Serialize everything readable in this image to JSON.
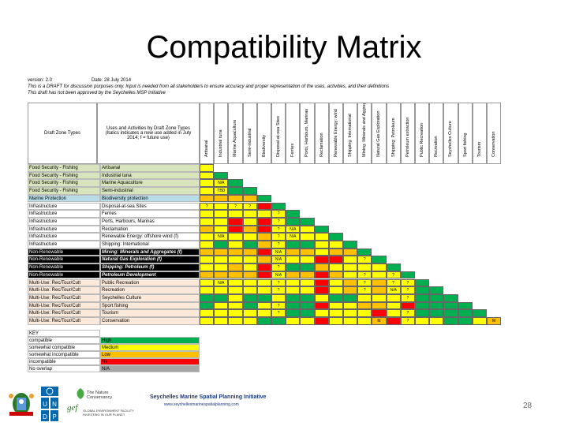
{
  "title": "Compatibility Matrix",
  "meta": {
    "version": "version: 2.0",
    "date": "Date: 28 July 2014",
    "line2": "This is a DRAFT for discussion purposes only. Input is needed from all stakeholders to ensure accuracy and proper representation of the uses, activities, and their definitions",
    "line3": "This draft has not been approved by the Seychelles MSP Initiative"
  },
  "header": {
    "left": "Draft Zone Types",
    "mid": "Uses and Activities by Draft Zone Types (Italics indicates a new use added in July 2014; f = future use)"
  },
  "columns": [
    "Artisanal",
    "Industrial tuna",
    "Marine Aquaculture",
    "Semi-industrial",
    "Biodiversity",
    "Disposal-at-sea Sites",
    "Ferries",
    "Ports, Harbours, Marinas",
    "Reclamation",
    "Renewable Energy: wind",
    "Shipping: International",
    "Mining: Minerals and Aggregates",
    "Natural Gas Exploration",
    "Shipping: Petroleum",
    "Petroleum extraction",
    "Public Recreation",
    "Recreation",
    "Seychelles Culture",
    "Sport fishing",
    "Tourism",
    "Conservation"
  ],
  "rows": [
    {
      "zone": "Food Security - Fishing",
      "use": "Artisanal"
    },
    {
      "zone": "Food Security - Fishing",
      "use": "Industrial tuna"
    },
    {
      "zone": "Food Security - Fishing",
      "use": "Marine Aquaculture"
    },
    {
      "zone": "Food Security - Fishing",
      "use": "Semi-industrial"
    },
    {
      "zone": "Marine Protection",
      "use": "Biodiversity protection"
    },
    {
      "zone": "Infrastructure",
      "use": "Disposal-at-sea Sites"
    },
    {
      "zone": "Infrastructure",
      "use": "Ferries"
    },
    {
      "zone": "Infrastructure",
      "use": "Ports, Harbours, Marinas"
    },
    {
      "zone": "Infrastructure",
      "use": "Reclamation"
    },
    {
      "zone": "Infrastructure",
      "use": "Renewable Energy: offshore wind (f)"
    },
    {
      "zone": "Infrastructure",
      "use": "Shipping: International"
    },
    {
      "zone": "Non-Renewable",
      "use": "Mining: Minerals and Aggregates (f)"
    },
    {
      "zone": "Non-Renewable",
      "use": "Natural Gas Exploration (f)"
    },
    {
      "zone": "Non-Renewable",
      "use": "Shipping: Petroleum (f)"
    },
    {
      "zone": "Non-Renewable",
      "use": "Petroleum Development"
    },
    {
      "zone": "Multi-Use: Rec/Tour/Cult",
      "use": "Public Recreation"
    },
    {
      "zone": "Multi-Use: Rec/Tour/Cult",
      "use": "Recreation"
    },
    {
      "zone": "Multi-Use: Rec/Tour/Cult",
      "use": "Seychelles Culture"
    },
    {
      "zone": "Multi-Use: Rec/Tour/Cult",
      "use": "Sport fishing"
    },
    {
      "zone": "Multi-Use: Rec/Tour/Cult",
      "use": "Tourism"
    },
    {
      "zone": "Multi-Use: Rec/Tour/Cult",
      "use": "Conservation"
    }
  ],
  "matrix": [
    [
      "Y",
      "",
      "",
      "",
      "",
      "",
      "",
      "",
      "",
      "",
      "",
      "",
      "",
      "",
      "",
      "",
      "",
      "",
      "",
      "",
      ""
    ],
    [
      "Y",
      "G",
      "",
      "",
      "",
      "",
      "",
      "",
      "",
      "",
      "",
      "",
      "",
      "",
      "",
      "",
      "",
      "",
      "",
      "",
      ""
    ],
    [
      "Y",
      "N/A",
      "G",
      "",
      "",
      "",
      "",
      "",
      "",
      "",
      "",
      "",
      "",
      "",
      "",
      "",
      "",
      "",
      "",
      "",
      ""
    ],
    [
      "Y",
      "TBD",
      "G",
      "G",
      "",
      "",
      "",
      "",
      "",
      "",
      "",
      "",
      "",
      "",
      "",
      "",
      "",
      "",
      "",
      "",
      ""
    ],
    [
      "O",
      "O",
      "O",
      "O",
      "G",
      "",
      "",
      "",
      "",
      "",
      "",
      "",
      "",
      "",
      "",
      "",
      "",
      "",
      "",
      "",
      ""
    ],
    [
      "?",
      "Y",
      "?",
      "?",
      "R",
      "G",
      "",
      "",
      "",
      "",
      "",
      "",
      "",
      "",
      "",
      "",
      "",
      "",
      "",
      "",
      ""
    ],
    [
      "Y",
      "Y",
      "Y",
      "Y",
      "Y",
      "?",
      "G",
      "",
      "",
      "",
      "",
      "",
      "",
      "",
      "",
      "",
      "",
      "",
      "",
      "",
      ""
    ],
    [
      "Y",
      "Y",
      "R",
      "Y",
      "R",
      "?",
      "G",
      "G",
      "",
      "",
      "",
      "",
      "",
      "",
      "",
      "",
      "",
      "",
      "",
      "",
      ""
    ],
    [
      "O",
      "Y",
      "R",
      "O",
      "R",
      "?",
      "N/A",
      "Y",
      "G",
      "",
      "",
      "",
      "",
      "",
      "",
      "",
      "",
      "",
      "",
      "",
      ""
    ],
    [
      "Y",
      "N/A",
      "Y",
      "Y",
      "O",
      "?",
      "N/A",
      "Y",
      "Y",
      "G",
      "",
      "",
      "",
      "",
      "",
      "",
      "",
      "",
      "",
      "",
      ""
    ],
    [
      "Y",
      "G",
      "Y",
      "G",
      "O",
      "?",
      "G",
      "G",
      "Y",
      "Y",
      "G",
      "",
      "",
      "",
      "",
      "",
      "",
      "",
      "",
      "",
      ""
    ],
    [
      "O",
      "O",
      "O",
      "O",
      "R",
      "N/A",
      "O",
      "O",
      "Y",
      "O",
      "O",
      "G",
      "",
      "",
      "",
      "",
      "",
      "",
      "",
      "",
      ""
    ],
    [
      "Y",
      "Y",
      "Y",
      "Y",
      "O",
      "N/A",
      "Y",
      "Y",
      "R",
      "R",
      "Y",
      "?",
      "G",
      "",
      "",
      "",
      "",
      "",
      "",
      "",
      ""
    ],
    [
      "Y",
      "Y",
      "O",
      "Y",
      "R",
      "?",
      "G",
      "G",
      "O",
      "Y",
      "Y",
      "Y",
      "Y",
      "G",
      "",
      "",
      "",
      "",
      "",
      "",
      ""
    ],
    [
      "O",
      "O",
      "O",
      "O",
      "R",
      "N/A",
      "O",
      "O",
      "R",
      "O",
      "Y",
      "?",
      "Y",
      "?",
      "G",
      "",
      "",
      "",
      "",
      "",
      ""
    ],
    [
      "Y",
      "N/A",
      "Y",
      "Y",
      "Y",
      "?",
      "Y",
      "Y",
      "R",
      "Y",
      "O",
      "?",
      "O",
      "?",
      "?",
      "G",
      "",
      "",
      "",
      "",
      ""
    ],
    [
      "Y",
      "Y",
      "Y",
      "Y",
      "Y",
      "?",
      "Y",
      "Y",
      "R",
      "Y",
      "O",
      "?",
      "O",
      "N/A",
      "?",
      "G",
      "G",
      "",
      "",
      "",
      ""
    ],
    [
      "G",
      "G",
      "Y",
      "G",
      "G",
      "Y",
      "G",
      "G",
      "Y",
      "G",
      "G",
      "Y",
      "Y",
      "Y",
      "?",
      "G",
      "G",
      "G",
      "",
      "",
      ""
    ],
    [
      "G",
      "Y",
      "Y",
      "G",
      "Y",
      "?",
      "G",
      "G",
      "R",
      "Y",
      "Y",
      "O",
      "O",
      "Y",
      "R",
      "G",
      "G",
      "G",
      "G",
      "",
      ""
    ],
    [
      "Y",
      "Y",
      "Y",
      "Y",
      "Y",
      "?",
      "G",
      "G",
      "Y",
      "Y",
      "Y",
      "Y",
      "R",
      "Y",
      "?",
      "G",
      "G",
      "G",
      "G",
      "G",
      ""
    ],
    [
      "Y",
      "Y",
      "Y",
      "Y",
      "G",
      "G",
      "Y",
      "Y",
      "R",
      "Y",
      "Y",
      "Y",
      "M",
      "R",
      "?",
      "Y",
      "Y",
      "G",
      "G",
      "Y",
      "M"
    ]
  ],
  "key": {
    "title": "KEY",
    "items": [
      {
        "label": "compatible",
        "value": "High",
        "color": "#00b050"
      },
      {
        "label": "somewhat compatible",
        "value": "Medium",
        "color": "#ffff00"
      },
      {
        "label": "somewhat incompatible",
        "value": "Low",
        "color": "#ffc000"
      },
      {
        "label": "incompatible",
        "value": "Nil",
        "color": "#ff0000"
      },
      {
        "label": "No overlap",
        "value": "N/A",
        "color": "#a6a6a6"
      }
    ]
  },
  "footer": {
    "initiative": "Seychelles Marine Spatial Planning Initiative",
    "url": "www.seychellesmarinespatialplanning.com",
    "tnc": "The Nature Conservancy",
    "gef": "GLOBAL ENVIRONMENT FACILITY INVESTING IN OUR PLANET",
    "page": "28"
  },
  "colors": {
    "G": "#00b050",
    "Y": "#ffff00",
    "O": "#ffc000",
    "R": "#ff0000",
    "N": "#a6a6a6",
    "zone_food": "#d8e4bc",
    "zone_marine": "#b7dee8",
    "zone_infra": "#ffffff",
    "zone_nonrenew": "#000000",
    "zone_multi": "#fde9d9"
  }
}
